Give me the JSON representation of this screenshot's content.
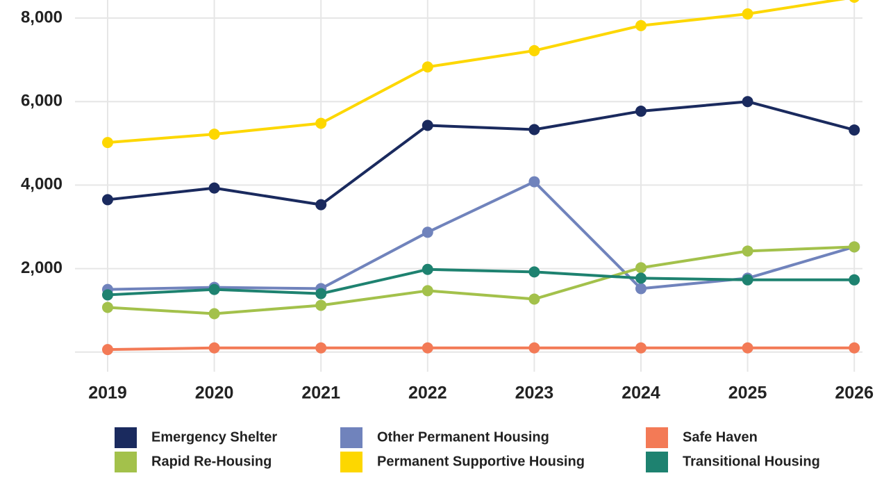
{
  "chart_data": {
    "type": "line",
    "categories": [
      "2019",
      "2020",
      "2021",
      "2022",
      "2023",
      "2024",
      "2025",
      "2026"
    ],
    "series": [
      {
        "name": "Emergency Shelter",
        "color": "#1a2a5e",
        "values": [
          3650,
          3930,
          3530,
          5430,
          5330,
          5770,
          6000,
          5320
        ]
      },
      {
        "name": "Other Permanent Housing",
        "color": "#7083bc",
        "values": [
          1500,
          1550,
          1520,
          2870,
          4080,
          1520,
          1770,
          2520
        ]
      },
      {
        "name": "Safe Haven",
        "color": "#f37a56",
        "values": [
          60,
          100,
          100,
          100,
          100,
          100,
          100,
          100
        ]
      },
      {
        "name": "Rapid Re-Housing",
        "color": "#a3c14b",
        "values": [
          1070,
          920,
          1120,
          1470,
          1270,
          2020,
          2420,
          2520
        ]
      },
      {
        "name": "Permanent Supportive Housing",
        "color": "#fdd700",
        "values": [
          5020,
          5220,
          5480,
          6830,
          7220,
          7820,
          8100,
          8500
        ]
      },
      {
        "name": "Transitional Housing",
        "color": "#1e8270",
        "values": [
          1370,
          1500,
          1400,
          1980,
          1920,
          1770,
          1730,
          1730
        ]
      }
    ],
    "ylim": [
      -470,
      8450
    ],
    "yticks": [
      {
        "value": 2000,
        "label": "2,000"
      },
      {
        "value": 4000,
        "label": "4,000"
      },
      {
        "value": 6000,
        "label": "6,000"
      },
      {
        "value": 8000,
        "label": "8,000"
      }
    ],
    "grid": true
  }
}
